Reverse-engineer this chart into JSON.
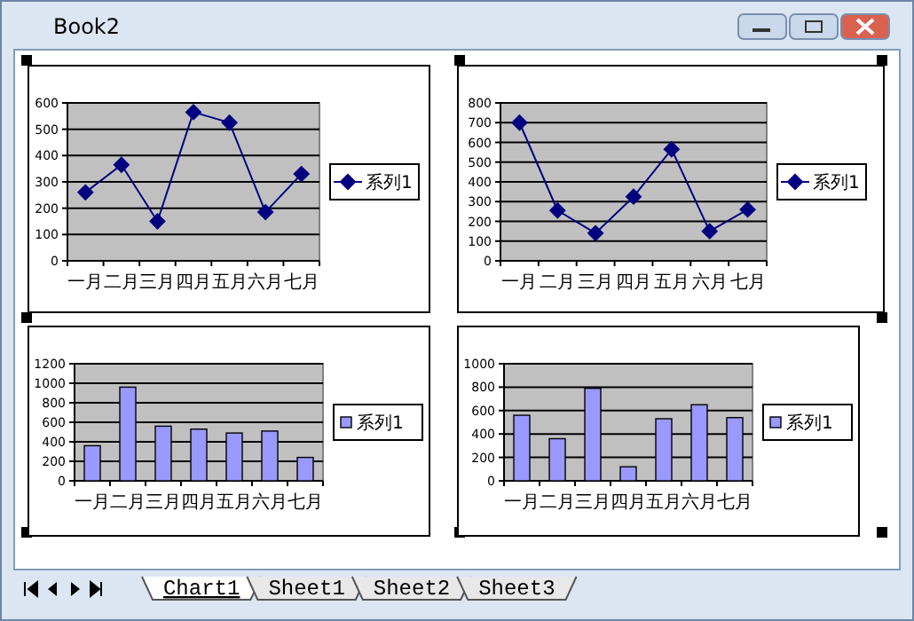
{
  "chart_data": [
    {
      "type": "line",
      "categories": [
        "一月",
        "二月",
        "三月",
        "四月",
        "五月",
        "六月",
        "七月"
      ],
      "series": [
        {
          "name": "系列1",
          "color": "#000080",
          "values": [
            260,
            365,
            150,
            565,
            525,
            185,
            330
          ]
        }
      ],
      "ylim": [
        0,
        600
      ],
      "yticks": [
        0,
        100,
        200,
        300,
        400,
        500,
        600
      ],
      "grid": "y",
      "legend": "right",
      "marker": "diamond"
    },
    {
      "type": "line",
      "categories": [
        "一月",
        "二月",
        "三月",
        "四月",
        "五月",
        "六月",
        "七月"
      ],
      "series": [
        {
          "name": "系列1",
          "color": "#000080",
          "values": [
            700,
            255,
            140,
            325,
            565,
            150,
            260
          ]
        }
      ],
      "ylim": [
        0,
        800
      ],
      "yticks": [
        0,
        100,
        200,
        300,
        400,
        500,
        600,
        700,
        800
      ],
      "grid": "y",
      "legend": "right",
      "marker": "diamond"
    },
    {
      "type": "bar",
      "categories": [
        "一月",
        "二月",
        "三月",
        "四月",
        "五月",
        "六月",
        "七月"
      ],
      "series": [
        {
          "name": "系列1",
          "color": "#9999ff",
          "values": [
            360,
            960,
            560,
            530,
            490,
            510,
            240
          ]
        }
      ],
      "ylim": [
        0,
        1200
      ],
      "yticks": [
        0,
        200,
        400,
        600,
        800,
        1000,
        1200
      ],
      "grid": "y",
      "legend": "right"
    },
    {
      "type": "bar",
      "categories": [
        "一月",
        "二月",
        "三月",
        "四月",
        "五月",
        "六月",
        "七月"
      ],
      "series": [
        {
          "name": "系列1",
          "color": "#9999ff",
          "values": [
            560,
            360,
            790,
            120,
            530,
            650,
            540
          ]
        }
      ],
      "ylim": [
        0,
        1000
      ],
      "yticks": [
        0,
        200,
        400,
        600,
        800,
        1000
      ],
      "grid": "y",
      "legend": "right"
    },
    {
      "type": "other",
      "annotations": [
        "Book2",
        "Chart1",
        "Sheet1",
        "Sheet2",
        "Sheet3"
      ]
    }
  ]
}
